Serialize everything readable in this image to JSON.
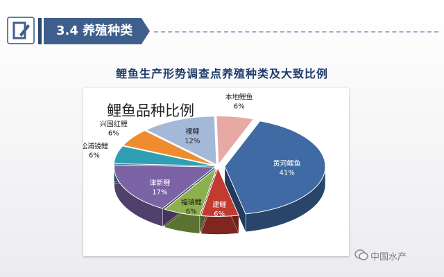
{
  "section": {
    "title": "3.4 养殖种类"
  },
  "subtitle": "鲤鱼生产形势调查点养殖种类及大致比例",
  "watermark": "中国水产",
  "colors": {
    "tab": "#3e5f8c",
    "subtitle": "#1f3c6b"
  },
  "chart_data": {
    "type": "pie",
    "title": "鲤鱼品种比例",
    "slices": [
      {
        "label": "本地鲤鱼",
        "value": 6,
        "text": "6%",
        "color": "#e8a8a4"
      },
      {
        "label": "黄河鲤鱼",
        "value": 41,
        "text": "41%",
        "color": "#3f6aa3"
      },
      {
        "label": "建鲤",
        "value": 6,
        "text": "6%",
        "color": "#c23b30"
      },
      {
        "label": "福瑞鲤",
        "value": 6,
        "text": "6%",
        "color": "#8db04e"
      },
      {
        "label": "津新鲤",
        "value": 17,
        "text": "17%",
        "color": "#7b63a6"
      },
      {
        "label": "松浦镜鲤",
        "value": 6,
        "text": "6%",
        "color": "#2f9fb5"
      },
      {
        "label": "兴国红鲤",
        "value": 6,
        "text": "6%",
        "color": "#ef8d2e"
      },
      {
        "label": "裸鲤",
        "value": 12,
        "text": "12%",
        "color": "#a4b8d8"
      }
    ],
    "legend": "none",
    "labels": "category and percentage beside each slice"
  }
}
